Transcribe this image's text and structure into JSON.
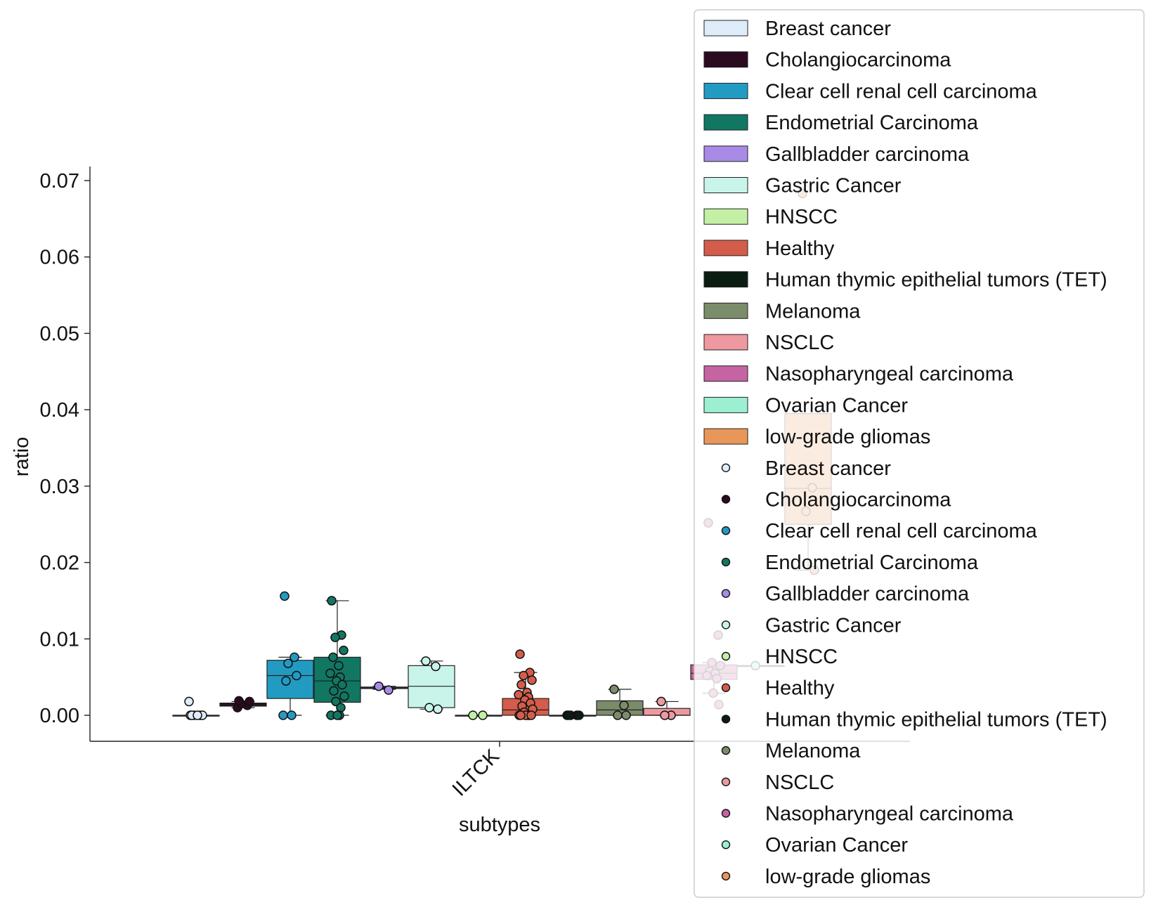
{
  "chart_data": {
    "type": "box",
    "title": "",
    "xlabel": "subtypes",
    "ylabel": "ratio",
    "categories": [
      "ILTCK"
    ],
    "ylim": [
      -0.0035,
      0.0715
    ],
    "yticks": [
      0.0,
      0.01,
      0.02,
      0.03,
      0.04,
      0.05,
      0.06,
      0.07
    ],
    "ytick_labels": [
      "0.00",
      "0.01",
      "0.02",
      "0.03",
      "0.04",
      "0.05",
      "0.06",
      "0.07"
    ],
    "legend_placement": "right, overlapping plot",
    "series": [
      {
        "name": "Breast cancer",
        "color": "#deedf9",
        "q1": 0.0,
        "median": 0.0,
        "q3": 0.0,
        "whisker_low": 0.0,
        "whisker_high": 0.0,
        "points": [
          0.0,
          0.0,
          0.0,
          0.0,
          0.0,
          0.0,
          0.0018
        ]
      },
      {
        "name": "Cholangiocarcinoma",
        "color": "#2b0b1f",
        "q1": 0.0012,
        "median": 0.0014,
        "q3": 0.0016,
        "whisker_low": 0.001,
        "whisker_high": 0.0018,
        "points": [
          0.001,
          0.0013,
          0.0015,
          0.0018,
          0.0019
        ]
      },
      {
        "name": "Clear cell renal cell carcinoma",
        "color": "#229bc3",
        "q1": 0.0022,
        "median": 0.0052,
        "q3": 0.0072,
        "whisker_low": 0.0,
        "whisker_high": 0.0076,
        "points": [
          0.0156,
          0.0076,
          0.0068,
          0.0052,
          0.0045,
          0.0,
          0.0
        ]
      },
      {
        "name": "Endometrial Carcinoma",
        "color": "#117662",
        "q1": 0.0017,
        "median": 0.0045,
        "q3": 0.0076,
        "whisker_low": 0.0,
        "whisker_high": 0.015,
        "points": [
          0.015,
          0.0105,
          0.0102,
          0.0085,
          0.0076,
          0.0065,
          0.0055,
          0.005,
          0.0045,
          0.004,
          0.0032,
          0.0025,
          0.0018,
          0.001,
          0.0,
          0.0,
          0.0
        ]
      },
      {
        "name": "Gallbladder carcinoma",
        "color": "#a98be7",
        "q1": 0.0035,
        "median": 0.0036,
        "q3": 0.0037,
        "whisker_low": 0.0034,
        "whisker_high": 0.0038,
        "points": [
          0.0038,
          0.0033
        ]
      },
      {
        "name": "Gastric Cancer",
        "color": "#c9f4e9",
        "q1": 0.001,
        "median": 0.0038,
        "q3": 0.0065,
        "whisker_low": 0.0008,
        "whisker_high": 0.0071,
        "points": [
          0.0071,
          0.0064,
          0.001,
          0.0008
        ]
      },
      {
        "name": "HNSCC",
        "color": "#c3f0a4",
        "q1": 0.0,
        "median": 0.0,
        "q3": 0.0,
        "whisker_low": 0.0,
        "whisker_high": 0.0,
        "points": [
          0.0,
          0.0
        ]
      },
      {
        "name": "Healthy",
        "color": "#d35d4a",
        "q1": 0.0,
        "median": 0.0007,
        "q3": 0.0022,
        "whisker_low": 0.0,
        "whisker_high": 0.0056,
        "points": [
          0.008,
          0.0056,
          0.0052,
          0.0046,
          0.004,
          0.003,
          0.0027,
          0.0024,
          0.002,
          0.0016,
          0.0012,
          0.0008,
          0.0004,
          0.0,
          0.0,
          0.0,
          0.0,
          0.0,
          0.0
        ]
      },
      {
        "name": "Human thymic epithelial tumors (TET)",
        "color": "#0b1d12",
        "q1": 0.0,
        "median": 0.0,
        "q3": 0.0,
        "whisker_low": 0.0,
        "whisker_high": 0.0,
        "points": [
          0.0,
          0.0,
          0.0,
          0.0,
          0.0
        ]
      },
      {
        "name": "Melanoma",
        "color": "#7b8c6b",
        "q1": 0.0,
        "median": 0.0007,
        "q3": 0.0019,
        "whisker_low": 0.0,
        "whisker_high": 0.0034,
        "points": [
          0.0034,
          0.0013,
          0.0,
          0.0
        ]
      },
      {
        "name": "NSCLC",
        "color": "#ee98a0",
        "q1": 0.0,
        "median": 0.0,
        "q3": 0.0009,
        "whisker_low": 0.0,
        "whisker_high": 0.0018,
        "points": [
          0.0018,
          0.0,
          0.0
        ]
      },
      {
        "name": "Nasopharyngeal carcinoma",
        "color": "#c664a3",
        "q1": 0.0047,
        "median": 0.0055,
        "q3": 0.0066,
        "whisker_low": 0.0029,
        "whisker_high": 0.0069,
        "points": [
          0.0252,
          0.0105,
          0.0069,
          0.0065,
          0.0058,
          0.0055,
          0.0052,
          0.0048,
          0.0029,
          0.0014
        ]
      },
      {
        "name": "Ovarian Cancer",
        "color": "#9cefd0",
        "q1": 0.0065,
        "median": 0.0065,
        "q3": 0.0065,
        "whisker_low": 0.0065,
        "whisker_high": 0.0065,
        "points": [
          0.0065
        ]
      },
      {
        "name": "low-grade gliomas",
        "color": "#e9965a",
        "q1": 0.025,
        "median": 0.0297,
        "q3": 0.0395,
        "whisker_low": 0.019,
        "whisker_high": 0.0395,
        "points": [
          0.0683,
          0.0298,
          0.0267,
          0.019
        ]
      }
    ]
  }
}
